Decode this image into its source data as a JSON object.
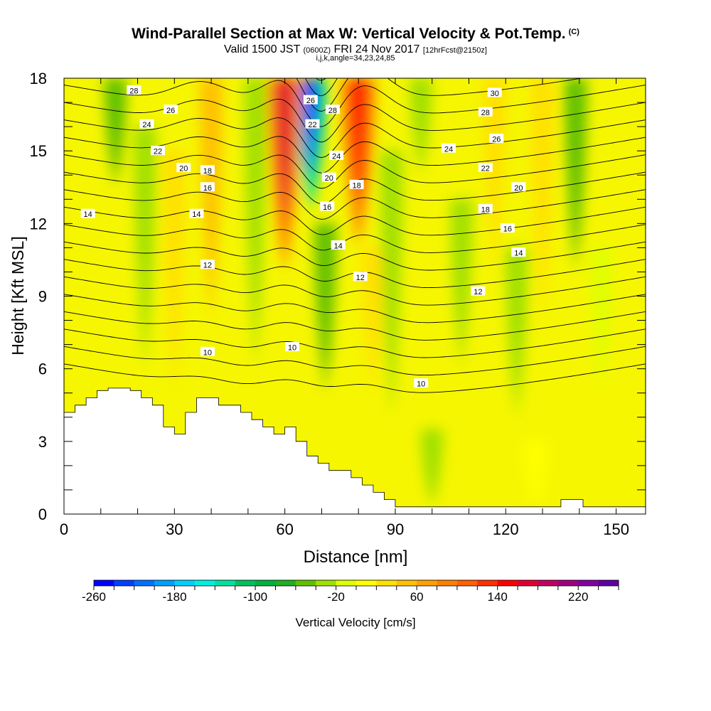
{
  "header": {
    "title": "Wind-Parallel Section at Max W: Vertical Velocity & Pot.Temp.",
    "copyright": "(C)",
    "valid_prefix": "Valid 1500 JST",
    "valid_utc": "(0600Z)",
    "valid_date": "FRI 24 Nov 2017",
    "forecast": "[12hrFcst@2150z]",
    "indices": "i,j,k,angle=34,23,24,85"
  },
  "chart_data": {
    "type": "heatmap",
    "xlabel": "Distance [nm]",
    "ylabel": "Height [Kft MSL]",
    "xlim": [
      0,
      158
    ],
    "ylim": [
      0,
      18
    ],
    "x_ticks": [
      0,
      30,
      60,
      90,
      120,
      150
    ],
    "y_ticks": [
      0,
      3,
      6,
      9,
      12,
      15,
      18
    ],
    "colorbar": {
      "label": "Vertical Velocity [cm/s]",
      "min": -260,
      "max": 260,
      "step": 20,
      "tick_labels": [
        -260,
        -180,
        -100,
        -20,
        60,
        140,
        220
      ],
      "colors": [
        "#0000ff",
        "#0040ff",
        "#0070ff",
        "#00a0ff",
        "#00d0ff",
        "#00f0e0",
        "#00e0a0",
        "#00c060",
        "#00b040",
        "#20b020",
        "#60c000",
        "#a0e000",
        "#e0ff00",
        "#ffff00",
        "#ffe000",
        "#ffc000",
        "#ffa000",
        "#ff8000",
        "#ff6000",
        "#ff3000",
        "#ff0000",
        "#e00030",
        "#c00060",
        "#a00080",
        "#8000a0",
        "#6000a0"
      ]
    },
    "velocity_features": [
      {
        "x": 67,
        "z_top": 18,
        "z_bottom": 12.5,
        "value": -240
      },
      {
        "x": 71,
        "z_top": 12,
        "z_bottom": 5,
        "value": -100
      },
      {
        "x": 60,
        "z_top": 18,
        "z_bottom": 10,
        "value": 160
      },
      {
        "x": 80,
        "z_top": 18,
        "z_bottom": 11,
        "value": 150
      },
      {
        "x": 40,
        "z_top": 18,
        "z_bottom": 8,
        "value": 90
      },
      {
        "x": 30,
        "z_top": 15,
        "z_bottom": 5,
        "value": 70
      },
      {
        "x": 14,
        "z_top": 18,
        "z_bottom": 13.5,
        "value": -80
      },
      {
        "x": 22,
        "z_top": 16,
        "z_bottom": 6,
        "value": -50
      },
      {
        "x": 52,
        "z_top": 18,
        "z_bottom": 6,
        "value": -60
      },
      {
        "x": 84,
        "z_top": 11,
        "z_bottom": 5,
        "value": 70
      },
      {
        "x": 89,
        "z_top": 15,
        "z_bottom": 4,
        "value": -70
      },
      {
        "x": 97,
        "z_top": 18,
        "z_bottom": 14,
        "value": -60
      },
      {
        "x": 108,
        "z_top": 13,
        "z_bottom": 6,
        "value": -40
      },
      {
        "x": 117,
        "z_top": 18,
        "z_bottom": 10,
        "value": 40
      },
      {
        "x": 123,
        "z_top": 11,
        "z_bottom": 4,
        "value": -40
      },
      {
        "x": 130,
        "z_top": 18,
        "z_bottom": 8,
        "value": 50
      },
      {
        "x": 139,
        "z_top": 18,
        "z_bottom": 10,
        "value": -100
      },
      {
        "x": 146,
        "z_top": 11,
        "z_bottom": 5,
        "value": -30
      },
      {
        "x": 100,
        "z_top": 3.5,
        "z_bottom": 0.3,
        "value": -40
      },
      {
        "x": 128,
        "z_top": 3,
        "z_bottom": 0.3,
        "value": 30
      }
    ],
    "terrain_profile": {
      "x": [
        0,
        3,
        6,
        9,
        12,
        15,
        18,
        21,
        24,
        27,
        30,
        33,
        36,
        39,
        42,
        45,
        48,
        51,
        54,
        57,
        60,
        63,
        66,
        69,
        72,
        75,
        78,
        81,
        84,
        87,
        90,
        132,
        135,
        138,
        141,
        158
      ],
      "height": [
        4.2,
        4.5,
        4.8,
        5.1,
        5.2,
        5.2,
        5.1,
        4.8,
        4.5,
        3.6,
        3.3,
        4.2,
        4.8,
        4.8,
        4.5,
        4.5,
        4.2,
        3.9,
        3.6,
        3.3,
        3.6,
        3.0,
        2.4,
        2.1,
        1.8,
        1.8,
        1.5,
        1.2,
        0.9,
        0.6,
        0.3,
        0.3,
        0.6,
        0.6,
        0.3,
        0.3
      ]
    },
    "theta_contours": {
      "levels": [
        10,
        11,
        12,
        13,
        14,
        15,
        16,
        17,
        18,
        19,
        20,
        21,
        22,
        23,
        24,
        25,
        26,
        27,
        28,
        29,
        30
      ],
      "labels": [
        {
          "text": "28",
          "x": 19,
          "z": 17.5
        },
        {
          "text": "26",
          "x": 29,
          "z": 16.7
        },
        {
          "text": "24",
          "x": 22.5,
          "z": 16.1
        },
        {
          "text": "22",
          "x": 25.5,
          "z": 15.0
        },
        {
          "text": "20",
          "x": 32.5,
          "z": 14.3
        },
        {
          "text": "18",
          "x": 39,
          "z": 14.2
        },
        {
          "text": "16",
          "x": 39,
          "z": 13.5
        },
        {
          "text": "14",
          "x": 6.5,
          "z": 12.4
        },
        {
          "text": "14",
          "x": 36,
          "z": 12.4
        },
        {
          "text": "12",
          "x": 39,
          "z": 10.3
        },
        {
          "text": "10",
          "x": 39,
          "z": 6.7
        },
        {
          "text": "10",
          "x": 62,
          "z": 6.9
        },
        {
          "text": "26",
          "x": 67,
          "z": 17.1
        },
        {
          "text": "28",
          "x": 73,
          "z": 16.7
        },
        {
          "text": "22",
          "x": 67.5,
          "z": 16.1
        },
        {
          "text": "24",
          "x": 74,
          "z": 14.8
        },
        {
          "text": "20",
          "x": 72,
          "z": 13.9
        },
        {
          "text": "18",
          "x": 79.5,
          "z": 13.6
        },
        {
          "text": "16",
          "x": 71.5,
          "z": 12.7
        },
        {
          "text": "14",
          "x": 74.5,
          "z": 11.1
        },
        {
          "text": "12",
          "x": 80.5,
          "z": 9.8
        },
        {
          "text": "10",
          "x": 97,
          "z": 5.4
        },
        {
          "text": "30",
          "x": 117,
          "z": 17.4
        },
        {
          "text": "28",
          "x": 114.5,
          "z": 16.6
        },
        {
          "text": "26",
          "x": 117.5,
          "z": 15.5
        },
        {
          "text": "24",
          "x": 104.5,
          "z": 15.1
        },
        {
          "text": "22",
          "x": 114.5,
          "z": 14.3
        },
        {
          "text": "20",
          "x": 123.5,
          "z": 13.5
        },
        {
          "text": "18",
          "x": 114.5,
          "z": 12.6
        },
        {
          "text": "16",
          "x": 120.5,
          "z": 11.8
        },
        {
          "text": "14",
          "x": 123.5,
          "z": 10.8
        },
        {
          "text": "12",
          "x": 112.5,
          "z": 9.2
        }
      ]
    }
  }
}
